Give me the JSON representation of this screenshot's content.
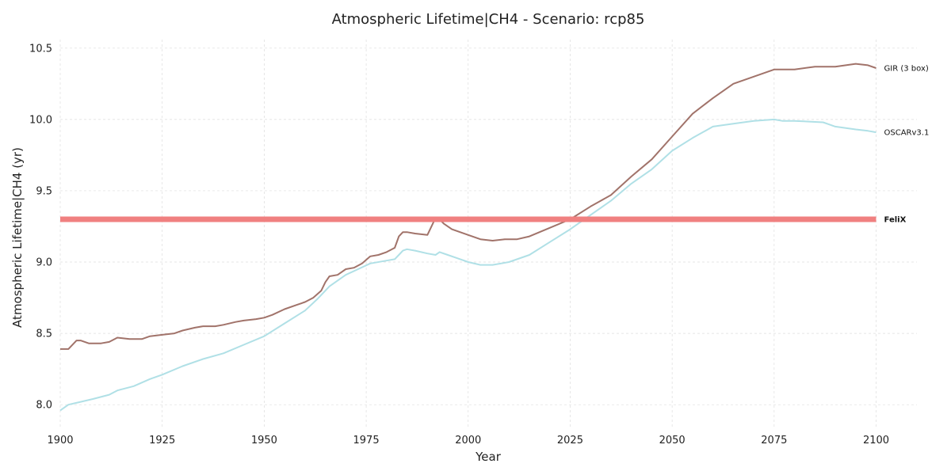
{
  "chart_data": {
    "type": "line",
    "title": "Atmospheric Lifetime|CH4 - Scenario: rcp85",
    "xlabel": "Year",
    "ylabel": "Atmospheric Lifetime|CH4 (yr)",
    "xlim": [
      1900,
      2110
    ],
    "ylim": [
      7.84,
      10.56
    ],
    "xticks": [
      1900,
      1925,
      1950,
      1975,
      2000,
      2025,
      2050,
      2075,
      2100
    ],
    "yticks": [
      8.0,
      8.5,
      9.0,
      9.5,
      10.0,
      10.5
    ],
    "grid": true,
    "legend": "inline-right",
    "series": [
      {
        "name": "GIR (3 box)",
        "color": "#a1736a",
        "width": 2,
        "x": [
          1900,
          1902,
          1904,
          1905,
          1907,
          1910,
          1912,
          1914,
          1917,
          1920,
          1922,
          1925,
          1928,
          1930,
          1933,
          1935,
          1938,
          1940,
          1943,
          1945,
          1948,
          1950,
          1952,
          1955,
          1958,
          1960,
          1962,
          1964,
          1965,
          1966,
          1968,
          1970,
          1972,
          1974,
          1976,
          1978,
          1980,
          1982,
          1983,
          1984,
          1985,
          1987,
          1990,
          1992,
          1993,
          1994,
          1996,
          1998,
          2000,
          2003,
          2006,
          2009,
          2012,
          2015,
          2020,
          2025,
          2030,
          2035,
          2040,
          2045,
          2050,
          2055,
          2060,
          2065,
          2070,
          2075,
          2080,
          2085,
          2090,
          2095,
          2098,
          2100
        ],
        "y": [
          8.39,
          8.39,
          8.45,
          8.45,
          8.43,
          8.43,
          8.44,
          8.47,
          8.46,
          8.46,
          8.48,
          8.49,
          8.5,
          8.52,
          8.54,
          8.55,
          8.55,
          8.56,
          8.58,
          8.59,
          8.6,
          8.61,
          8.63,
          8.67,
          8.7,
          8.72,
          8.75,
          8.8,
          8.86,
          8.9,
          8.91,
          8.95,
          8.96,
          8.99,
          9.04,
          9.05,
          9.07,
          9.1,
          9.18,
          9.21,
          9.21,
          9.2,
          9.19,
          9.31,
          9.3,
          9.27,
          9.23,
          9.21,
          9.19,
          9.16,
          9.15,
          9.16,
          9.16,
          9.18,
          9.24,
          9.3,
          9.39,
          9.47,
          9.6,
          9.72,
          9.88,
          10.04,
          10.15,
          10.25,
          10.3,
          10.35,
          10.35,
          10.37,
          10.37,
          10.39,
          10.38,
          10.36
        ]
      },
      {
        "name": "OSCARv3.1",
        "color": "#b0e0e6",
        "width": 2,
        "x": [
          1900,
          1902,
          1905,
          1908,
          1912,
          1914,
          1918,
          1922,
          1925,
          1930,
          1935,
          1940,
          1945,
          1950,
          1955,
          1960,
          1963,
          1966,
          1968,
          1970,
          1973,
          1976,
          1980,
          1982,
          1983,
          1984,
          1985,
          1987,
          1990,
          1992,
          1993,
          1995,
          1997,
          2000,
          2003,
          2006,
          2010,
          2015,
          2020,
          2025,
          2030,
          2035,
          2040,
          2045,
          2050,
          2055,
          2060,
          2065,
          2070,
          2075,
          2077,
          2080,
          2087,
          2088,
          2090,
          2095,
          2098,
          2100
        ],
        "y": [
          7.96,
          8.0,
          8.02,
          8.04,
          8.07,
          8.1,
          8.13,
          8.18,
          8.21,
          8.27,
          8.32,
          8.36,
          8.42,
          8.48,
          8.57,
          8.66,
          8.74,
          8.83,
          8.87,
          8.91,
          8.95,
          8.99,
          9.01,
          9.02,
          9.05,
          9.08,
          9.09,
          9.08,
          9.06,
          9.05,
          9.07,
          9.05,
          9.03,
          9.0,
          8.98,
          8.98,
          9.0,
          9.05,
          9.14,
          9.23,
          9.33,
          9.43,
          9.55,
          9.65,
          9.78,
          9.87,
          9.95,
          9.97,
          9.99,
          10.0,
          9.99,
          9.99,
          9.98,
          9.97,
          9.95,
          9.93,
          9.92,
          9.91
        ]
      },
      {
        "name": "FeliX",
        "color": "#f08080",
        "width": 7,
        "bold_label": true,
        "x": [
          1900,
          2100
        ],
        "y": [
          9.3,
          9.3
        ]
      }
    ]
  }
}
